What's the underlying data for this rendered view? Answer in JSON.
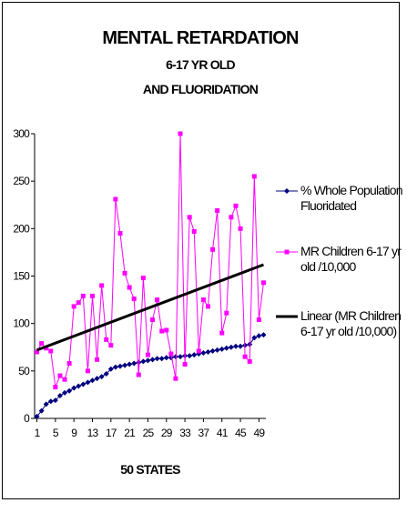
{
  "chart_data": {
    "type": "line",
    "title": [
      "MENTAL RETARDATION",
      "6-17 YR OLD",
      "AND FLUORIDATION"
    ],
    "x_label": "50 STATES",
    "x": [
      1,
      2,
      3,
      4,
      5,
      6,
      7,
      8,
      9,
      10,
      11,
      12,
      13,
      14,
      15,
      16,
      17,
      18,
      19,
      20,
      21,
      22,
      23,
      24,
      25,
      26,
      27,
      28,
      29,
      30,
      31,
      32,
      33,
      34,
      35,
      36,
      37,
      38,
      39,
      40,
      41,
      42,
      43,
      44,
      45,
      46,
      47,
      48,
      49,
      50
    ],
    "xlim": [
      0.5,
      50.5
    ],
    "xticks": [
      1,
      5,
      9,
      13,
      17,
      21,
      25,
      29,
      33,
      37,
      41,
      45,
      49
    ],
    "ylim": [
      0,
      300
    ],
    "yticks": [
      0,
      50,
      100,
      150,
      200,
      250,
      300
    ],
    "series": [
      {
        "name": "% Whole Population Fluoridated",
        "color": "#000080",
        "marker": "diamond",
        "values": [
          2,
          8,
          15,
          18,
          19,
          24,
          27,
          29,
          32,
          34,
          36,
          38,
          40,
          42,
          44,
          47,
          52,
          54,
          55,
          56,
          57,
          58,
          59,
          60,
          61,
          62,
          63,
          63,
          64,
          64,
          65,
          65,
          66,
          66,
          67,
          68,
          69,
          70,
          71,
          72,
          73,
          74,
          75,
          76,
          76,
          77,
          78,
          85,
          87,
          88
        ]
      },
      {
        "name": "MR Children 6-17 yr old /10,000",
        "color": "#ff00ff",
        "marker": "square",
        "values": [
          70,
          79,
          74,
          71,
          33,
          45,
          41,
          58,
          118,
          122,
          129,
          50,
          129,
          62,
          140,
          83,
          77,
          231,
          195,
          153,
          138,
          126,
          46,
          148,
          67,
          104,
          125,
          92,
          93,
          68,
          42,
          300,
          57,
          212,
          197,
          71,
          125,
          118,
          178,
          219,
          90,
          111,
          212,
          224,
          200,
          65,
          60,
          255,
          104,
          143
        ]
      },
      {
        "name": "Linear (MR Children 6-17 yr old /10,000)",
        "color": "#000000",
        "marker": "none",
        "x": [
          1,
          50
        ],
        "values": [
          72,
          162
        ]
      }
    ]
  }
}
